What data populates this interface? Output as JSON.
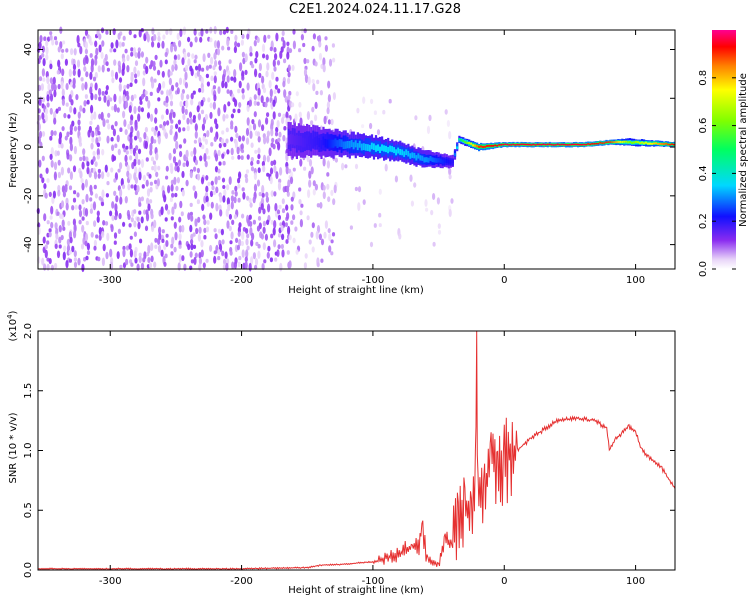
{
  "title": "C2E1.2024.024.11.17.G28",
  "colors": {
    "axis": "#000000",
    "snr_line": "#e53030",
    "spectrum_low": "#e6d0f8",
    "spectrum_mid": "#7a1ef0",
    "background": "#ffffff"
  },
  "chart_data": [
    {
      "type": "heatmap",
      "xlabel": "Height of straight line (km)",
      "ylabel": "Frequency (Hz)",
      "xlim": [
        -355,
        130
      ],
      "ylim": [
        -50,
        48
      ],
      "x_ticks": [
        -300,
        -200,
        -100,
        0,
        100
      ],
      "x_tick_labels": [
        "-300",
        "-200",
        "-100",
        "0",
        "100"
      ],
      "y_ticks": [
        -40,
        -20,
        0,
        20,
        40
      ],
      "y_tick_labels": [
        "-40",
        "-20",
        "0",
        "20",
        "40"
      ],
      "colorbar": {
        "label": "Normalized spectral amplitude",
        "range": [
          0,
          1
        ],
        "ticks": [
          0.0,
          0.2,
          0.4,
          0.6,
          0.8
        ],
        "tick_labels": [
          "0.0",
          "0.2",
          "0.4",
          "0.6",
          "0.8"
        ]
      },
      "regions": [
        {
          "x": [
            -355,
            -165
          ],
          "freq": [
            -50,
            48
          ],
          "amplitude": 0.1,
          "kind": "noise"
        },
        {
          "x": [
            -165,
            -130
          ],
          "freq": [
            -50,
            48
          ],
          "amplitude": 0.08,
          "kind": "sparse noise"
        },
        {
          "x": [
            -130,
            -40
          ],
          "freq": [
            -40,
            20
          ],
          "amplitude": 0.05,
          "kind": "faint noise"
        }
      ],
      "signal_track": {
        "x": [
          -165,
          -140,
          -120,
          -100,
          -80,
          -60,
          -40,
          -35,
          -20,
          0,
          60,
          80,
          95,
          130
        ],
        "freq": [
          3,
          2,
          1,
          0,
          -2,
          -5,
          -6,
          3,
          0,
          1,
          1,
          2,
          2,
          1
        ],
        "width": [
          14,
          12,
          10,
          9,
          8,
          7,
          5,
          3,
          3,
          2,
          2,
          2,
          3,
          2
        ],
        "amplitude": [
          0.15,
          0.2,
          0.3,
          0.35,
          0.35,
          0.3,
          0.2,
          0.45,
          0.9,
          0.95,
          0.95,
          0.9,
          0.6,
          0.95
        ]
      }
    },
    {
      "type": "line",
      "xlabel": "Height of straight line (km)",
      "ylabel": "SNR (10 * v/v)",
      "y_multiplier_label": "(x10",
      "y_multiplier_exp": "4",
      "xlim": [
        -355,
        130
      ],
      "ylim": [
        0,
        2.0
      ],
      "x_ticks": [
        -300,
        -200,
        -100,
        0,
        100
      ],
      "x_tick_labels": [
        "-300",
        "-200",
        "-100",
        "0",
        "100"
      ],
      "y_ticks": [
        0.0,
        0.5,
        1.0,
        1.5,
        2.0
      ],
      "y_tick_labels": [
        "0.0",
        "0.5",
        "1.0",
        "1.5",
        "2.0"
      ],
      "series": [
        {
          "x": [
            -355,
            -300,
            -200,
            -150,
            -140,
            -120,
            -100,
            -80,
            -70,
            -62,
            -58,
            -50,
            -45,
            -40,
            -35,
            -30,
            -25,
            -22,
            -21,
            -20,
            -15,
            -10,
            -5,
            0,
            10,
            20,
            40,
            55,
            70,
            78,
            80,
            85,
            90,
            95,
            100,
            105,
            110,
            120,
            130
          ],
          "y": [
            0.01,
            0.01,
            0.01,
            0.02,
            0.04,
            0.05,
            0.07,
            0.12,
            0.2,
            0.3,
            0.08,
            0.05,
            0.25,
            0.2,
            0.45,
            0.5,
            0.55,
            0.85,
            2.0,
            0.6,
            0.7,
            0.9,
            0.95,
            0.9,
            1.0,
            1.1,
            1.25,
            1.27,
            1.25,
            1.18,
            1.0,
            1.1,
            1.15,
            1.2,
            1.15,
            1.0,
            0.95,
            0.85,
            0.68
          ]
        }
      ]
    }
  ]
}
